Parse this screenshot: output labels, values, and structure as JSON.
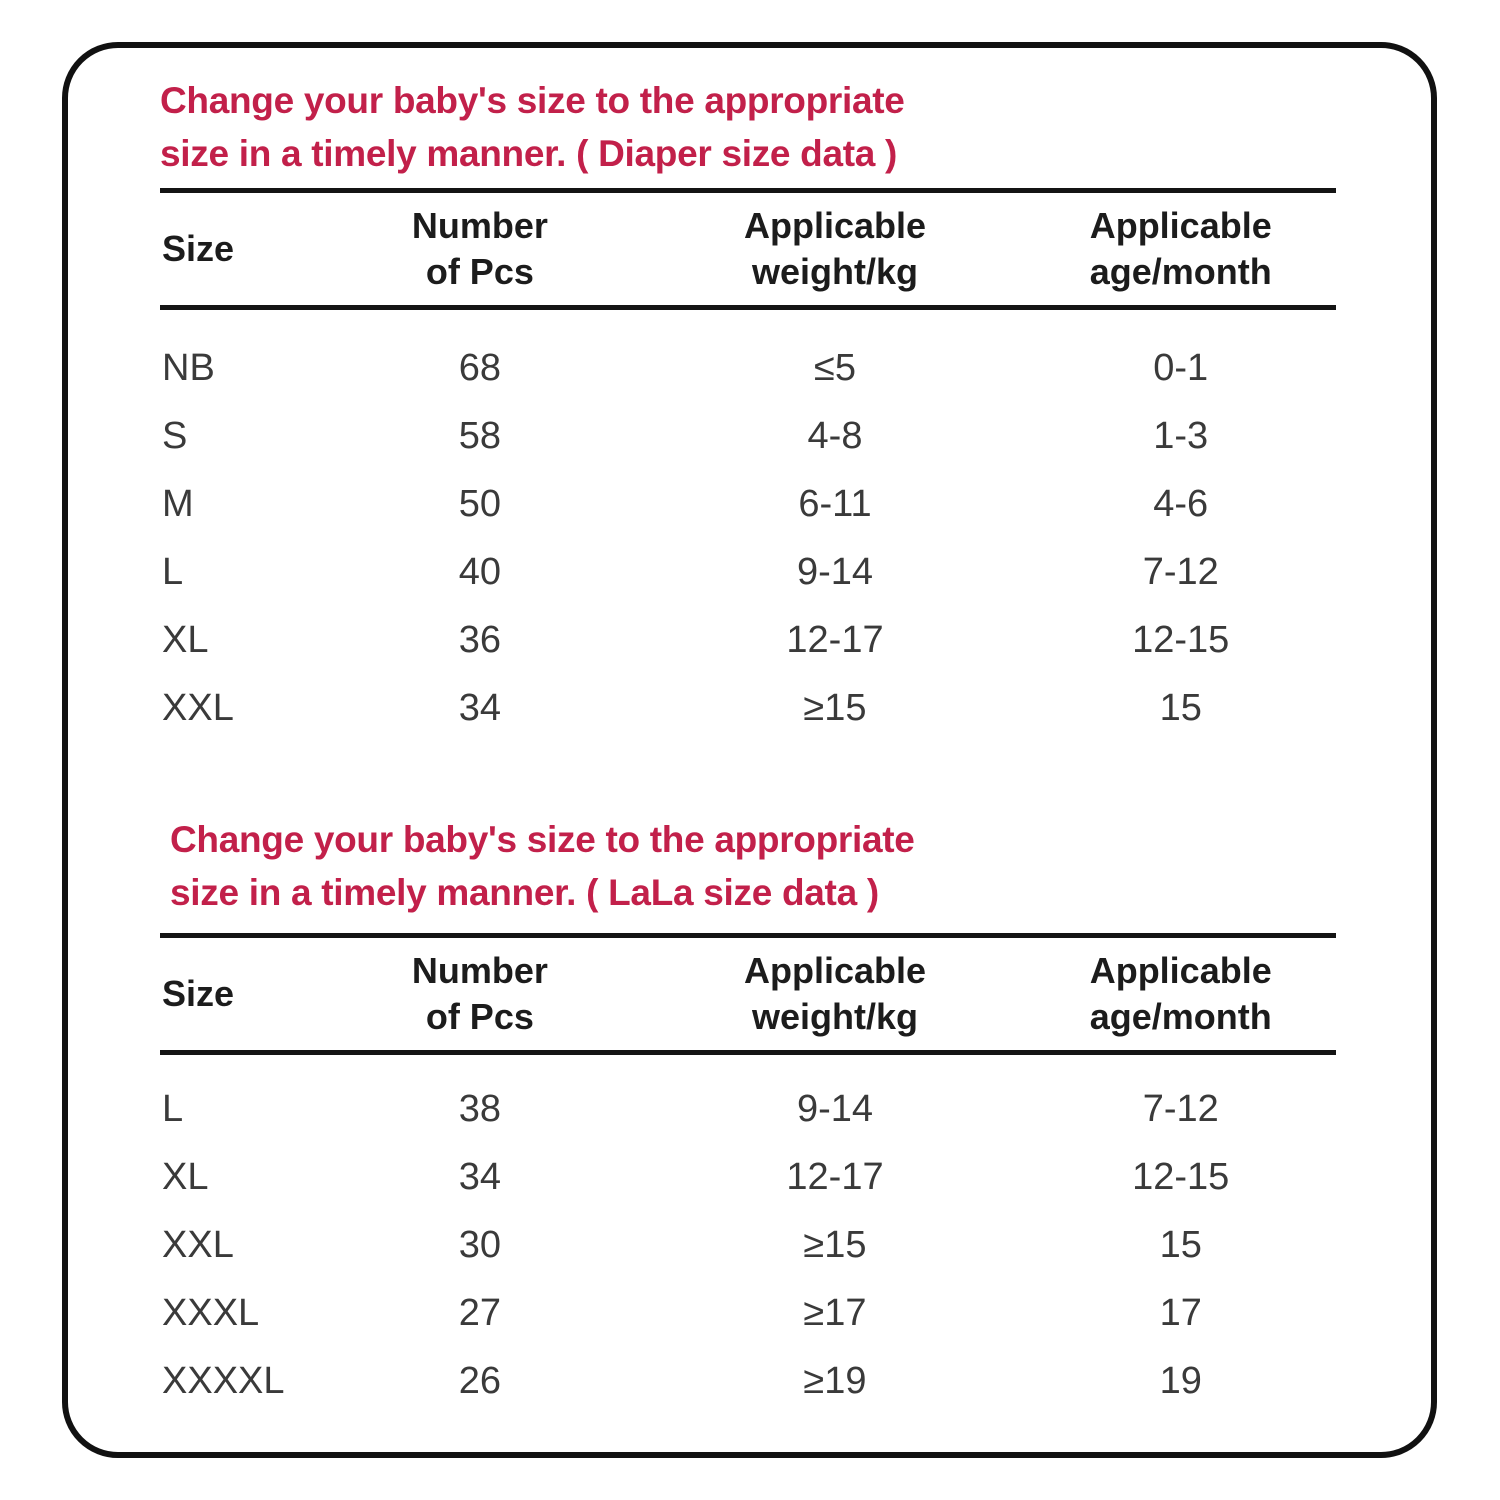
{
  "colors": {
    "accent_red": "#C2204A",
    "header_ink": "#1c1c1c",
    "data_ink": "#3a3a3a",
    "card_border": "#111111",
    "background": "#ffffff"
  },
  "sections": [
    {
      "title_line1": "Change your baby's size to the appropriate",
      "title_line2": "size in a timely manner. ( Diaper size data )",
      "header": {
        "size": "Size",
        "pcs_line1": "Number",
        "pcs_line2": "of Pcs",
        "weight_line1": "Applicable",
        "weight_line2": "weight/kg",
        "age_line1": "Applicable",
        "age_line2": "age/month"
      },
      "rows": [
        {
          "size": "NB",
          "pcs": "68",
          "weight": "≤5",
          "age": "0-1"
        },
        {
          "size": "S",
          "pcs": "58",
          "weight": "4-8",
          "age": "1-3"
        },
        {
          "size": "M",
          "pcs": "50",
          "weight": "6-11",
          "age": "4-6"
        },
        {
          "size": "L",
          "pcs": "40",
          "weight": "9-14",
          "age": "7-12"
        },
        {
          "size": "XL",
          "pcs": "36",
          "weight": "12-17",
          "age": "12-15"
        },
        {
          "size": "XXL",
          "pcs": "34",
          "weight": "≥15",
          "age": "15"
        }
      ]
    },
    {
      "title_line1": "Change your baby's size to the appropriate",
      "title_line2": "size in a timely manner. ( LaLa size data )",
      "header": {
        "size": "Size",
        "pcs_line1": "Number",
        "pcs_line2": "of Pcs",
        "weight_line1": "Applicable",
        "weight_line2": "weight/kg",
        "age_line1": "Applicable",
        "age_line2": "age/month"
      },
      "rows": [
        {
          "size": "L",
          "pcs": "38",
          "weight": "9-14",
          "age": "7-12"
        },
        {
          "size": "XL",
          "pcs": "34",
          "weight": "12-17",
          "age": "12-15"
        },
        {
          "size": "XXL",
          "pcs": "30",
          "weight": "≥15",
          "age": "15"
        },
        {
          "size": "XXXL",
          "pcs": "27",
          "weight": "≥17",
          "age": "17"
        },
        {
          "size": "XXXXL",
          "pcs": "26",
          "weight": "≥19",
          "age": "19"
        }
      ]
    }
  ]
}
